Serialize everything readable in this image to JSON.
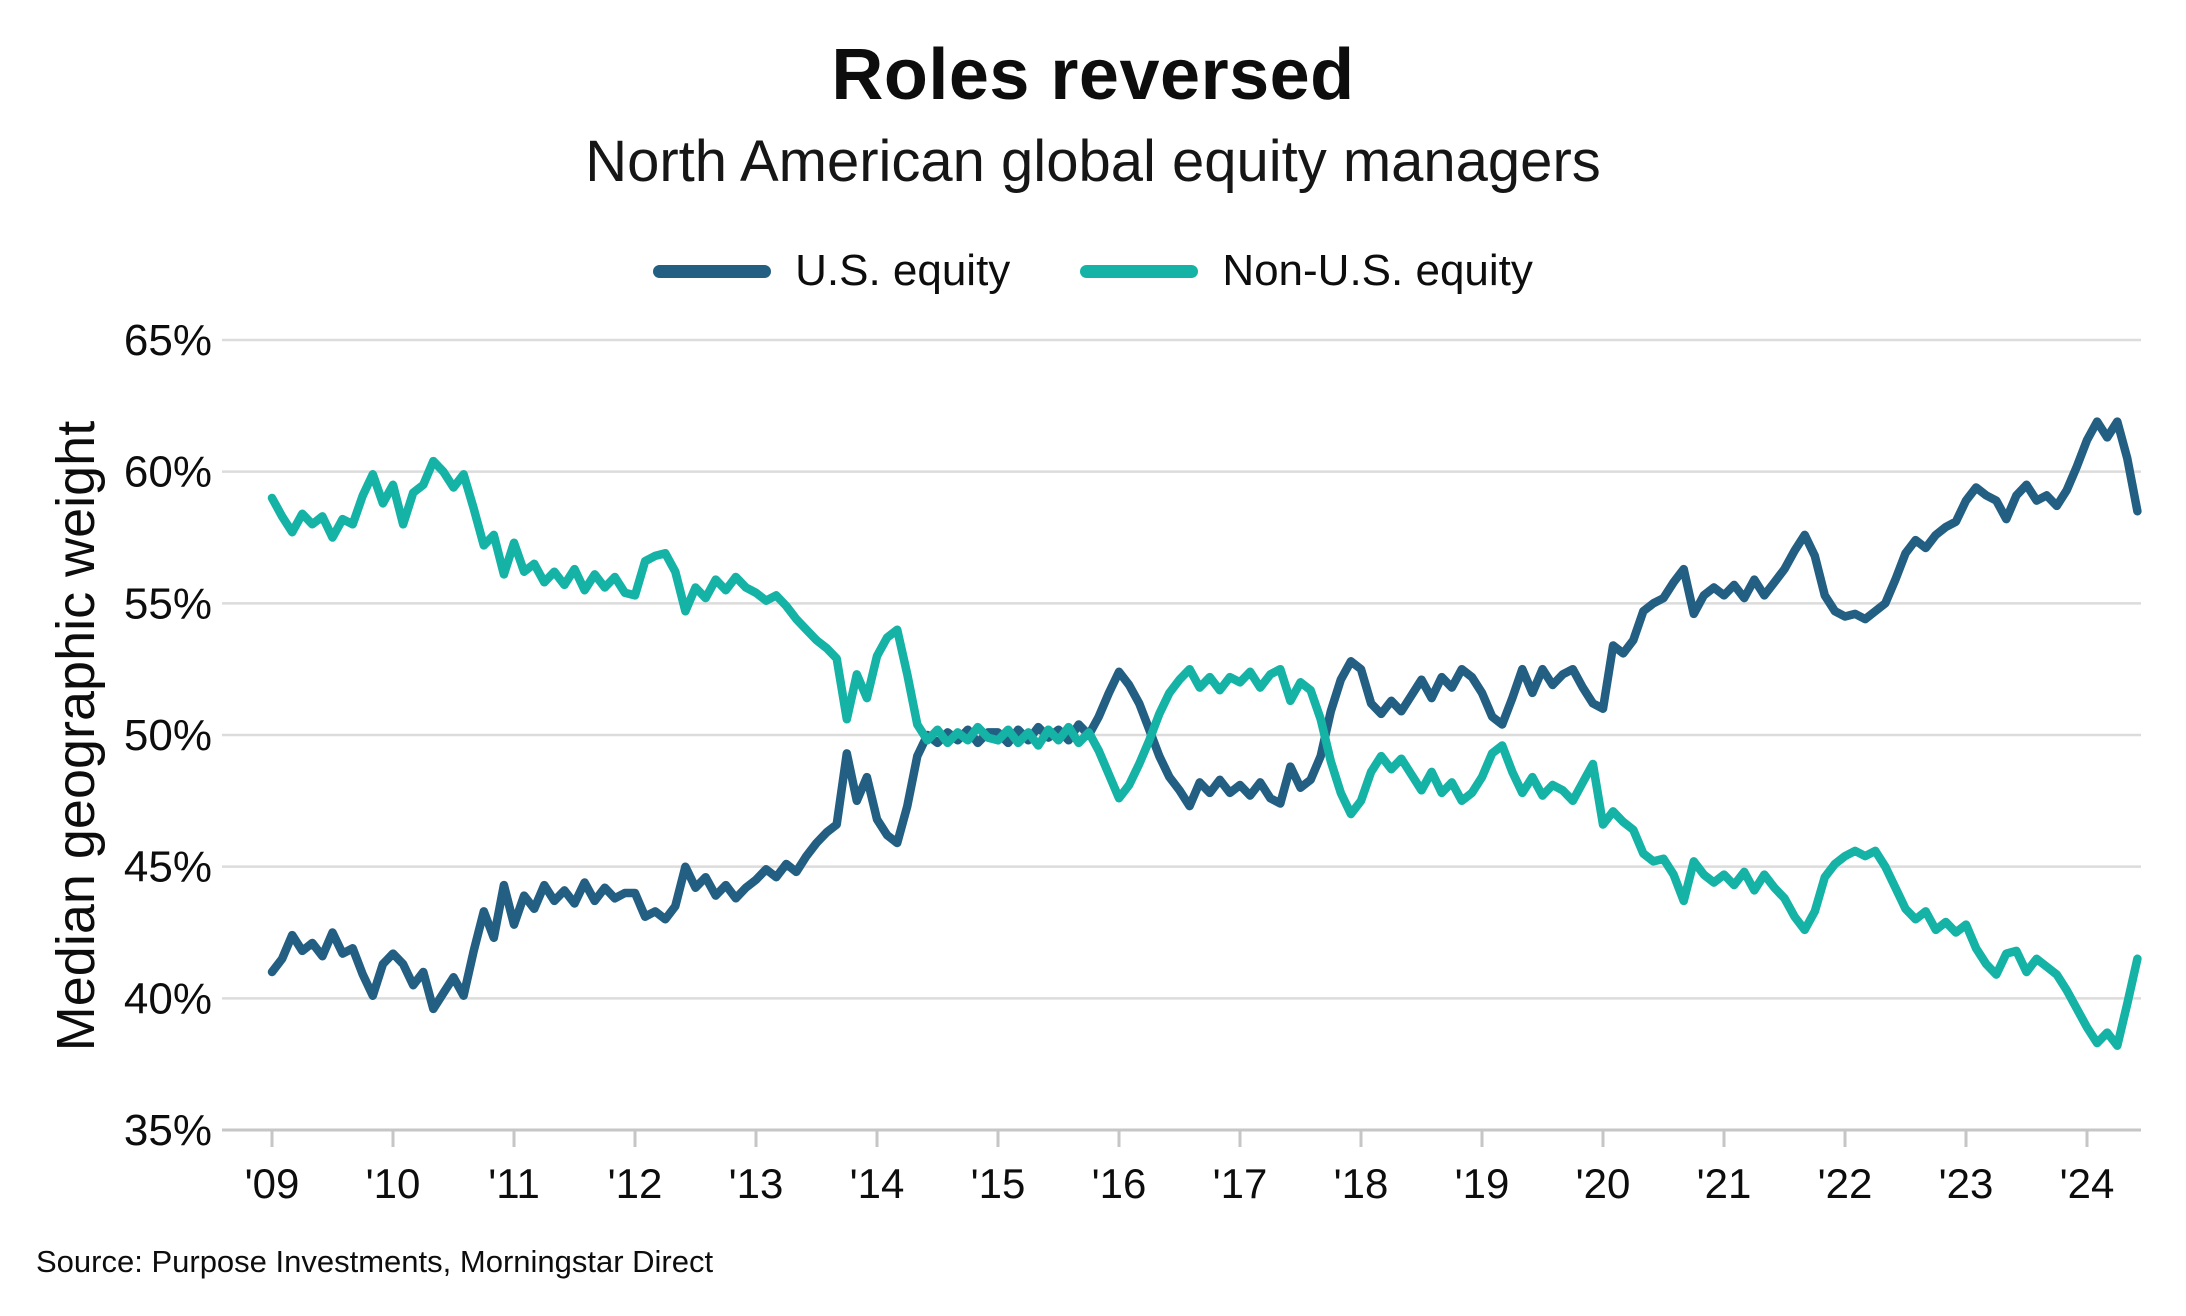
{
  "header": {
    "title": "Roles reversed",
    "subtitle": "North American global equity managers"
  },
  "source": "Source: Purpose Investments, Morningstar Direct",
  "chart_data": {
    "type": "line",
    "title": "Roles reversed",
    "subtitle": "North American global equity managers",
    "xlabel": "",
    "ylabel": "Median geographic weight",
    "ylim": [
      35,
      65
    ],
    "grid": "horizontal",
    "legend_position": "top",
    "y_ticks": [
      {
        "value": 65,
        "label": "65%"
      },
      {
        "value": 60,
        "label": "60%"
      },
      {
        "value": 55,
        "label": "55%"
      },
      {
        "value": 50,
        "label": "50%"
      },
      {
        "value": 45,
        "label": "45%"
      },
      {
        "value": 40,
        "label": "40%"
      },
      {
        "value": 35,
        "label": "35%"
      }
    ],
    "x_ticks": [
      {
        "year": 2009,
        "label": "'09"
      },
      {
        "year": 2010,
        "label": "'10"
      },
      {
        "year": 2011,
        "label": "'11"
      },
      {
        "year": 2012,
        "label": "'12"
      },
      {
        "year": 2013,
        "label": "'13"
      },
      {
        "year": 2014,
        "label": "'14"
      },
      {
        "year": 2015,
        "label": "'15"
      },
      {
        "year": 2016,
        "label": "'16"
      },
      {
        "year": 2017,
        "label": "'17"
      },
      {
        "year": 2018,
        "label": "'18"
      },
      {
        "year": 2019,
        "label": "'19"
      },
      {
        "year": 2020,
        "label": "'20"
      },
      {
        "year": 2021,
        "label": "'21"
      },
      {
        "year": 2022,
        "label": "'22"
      },
      {
        "year": 2023,
        "label": "'23"
      },
      {
        "year": 2024,
        "label": "'24"
      }
    ],
    "x_start_year": 2009,
    "points_per_year": 12,
    "series": [
      {
        "name": "U.S. equity",
        "color": "#235f82",
        "values": [
          41.0,
          41.5,
          42.4,
          41.8,
          42.1,
          41.6,
          42.5,
          41.7,
          41.9,
          40.9,
          40.1,
          41.3,
          41.7,
          41.3,
          40.5,
          41.0,
          39.6,
          40.2,
          40.8,
          40.1,
          41.8,
          43.3,
          42.3,
          44.3,
          42.8,
          43.9,
          43.4,
          44.3,
          43.7,
          44.1,
          43.6,
          44.4,
          43.7,
          44.2,
          43.8,
          44.0,
          44.0,
          43.1,
          43.3,
          43.0,
          43.5,
          45.0,
          44.2,
          44.6,
          43.9,
          44.3,
          43.8,
          44.2,
          44.5,
          44.9,
          44.6,
          45.1,
          44.8,
          45.4,
          45.9,
          46.3,
          46.6,
          49.3,
          47.5,
          48.4,
          46.8,
          46.2,
          45.9,
          47.3,
          49.2,
          50.0,
          49.7,
          50.1,
          49.8,
          50.2,
          49.7,
          50.1,
          50.1,
          49.7,
          50.2,
          49.8,
          50.3,
          49.9,
          50.2,
          49.8,
          50.4,
          50.0,
          50.7,
          51.6,
          52.4,
          51.9,
          51.2,
          50.2,
          49.2,
          48.4,
          47.9,
          47.3,
          48.2,
          47.8,
          48.3,
          47.8,
          48.1,
          47.7,
          48.2,
          47.6,
          47.4,
          48.8,
          48.0,
          48.3,
          49.2,
          50.9,
          52.1,
          52.8,
          52.5,
          51.2,
          50.8,
          51.3,
          50.9,
          51.5,
          52.1,
          51.4,
          52.2,
          51.8,
          52.5,
          52.2,
          51.6,
          50.7,
          50.4,
          51.4,
          52.5,
          51.6,
          52.5,
          51.9,
          52.3,
          52.5,
          51.8,
          51.2,
          51.0,
          53.4,
          53.1,
          53.6,
          54.7,
          55.0,
          55.2,
          55.8,
          56.3,
          54.6,
          55.3,
          55.6,
          55.3,
          55.7,
          55.2,
          55.9,
          55.3,
          55.8,
          56.3,
          57.0,
          57.6,
          56.8,
          55.3,
          54.7,
          54.5,
          54.6,
          54.4,
          54.7,
          55.0,
          55.9,
          56.9,
          57.4,
          57.1,
          57.6,
          57.9,
          58.1,
          58.9,
          59.4,
          59.1,
          58.9,
          58.2,
          59.1,
          59.5,
          58.9,
          59.1,
          58.7,
          59.3,
          60.2,
          61.2,
          61.9,
          61.3,
          61.9,
          60.5,
          58.5
        ]
      },
      {
        "name": "Non-U.S. equity",
        "color": "#15b2a6",
        "values": [
          59.0,
          58.3,
          57.7,
          58.4,
          58.0,
          58.3,
          57.5,
          58.2,
          58.0,
          59.1,
          59.9,
          58.8,
          59.5,
          58.0,
          59.2,
          59.5,
          60.4,
          60.0,
          59.4,
          59.9,
          58.6,
          57.2,
          57.6,
          56.1,
          57.3,
          56.2,
          56.5,
          55.8,
          56.2,
          55.7,
          56.3,
          55.5,
          56.1,
          55.6,
          56.0,
          55.4,
          55.3,
          56.6,
          56.8,
          56.9,
          56.2,
          54.7,
          55.6,
          55.2,
          55.9,
          55.5,
          56.0,
          55.6,
          55.4,
          55.1,
          55.3,
          54.9,
          54.4,
          54.0,
          53.6,
          53.3,
          52.9,
          50.6,
          52.3,
          51.4,
          53.0,
          53.7,
          54.0,
          52.3,
          50.4,
          49.8,
          50.2,
          49.7,
          50.1,
          49.8,
          50.3,
          49.9,
          49.8,
          50.2,
          49.7,
          50.1,
          49.6,
          50.2,
          49.8,
          50.3,
          49.7,
          50.1,
          49.4,
          48.5,
          47.6,
          48.1,
          48.9,
          49.8,
          50.8,
          51.6,
          52.1,
          52.5,
          51.8,
          52.2,
          51.7,
          52.2,
          52.0,
          52.4,
          51.8,
          52.3,
          52.5,
          51.3,
          52.0,
          51.7,
          50.6,
          49.0,
          47.8,
          47.0,
          47.5,
          48.6,
          49.2,
          48.7,
          49.1,
          48.5,
          47.9,
          48.6,
          47.8,
          48.2,
          47.5,
          47.8,
          48.4,
          49.3,
          49.6,
          48.6,
          47.8,
          48.4,
          47.7,
          48.1,
          47.9,
          47.5,
          48.2,
          48.9,
          46.6,
          47.1,
          46.7,
          46.4,
          45.5,
          45.2,
          45.3,
          44.7,
          43.7,
          45.2,
          44.7,
          44.4,
          44.7,
          44.3,
          44.8,
          44.1,
          44.7,
          44.2,
          43.8,
          43.1,
          42.6,
          43.3,
          44.6,
          45.1,
          45.4,
          45.6,
          45.4,
          45.6,
          45.0,
          44.2,
          43.4,
          43.0,
          43.3,
          42.6,
          42.9,
          42.5,
          42.8,
          41.9,
          41.3,
          40.9,
          41.7,
          41.8,
          41.0,
          41.5,
          41.2,
          40.9,
          40.3,
          39.6,
          38.9,
          38.3,
          38.7,
          38.2,
          39.8,
          41.5
        ]
      }
    ]
  }
}
